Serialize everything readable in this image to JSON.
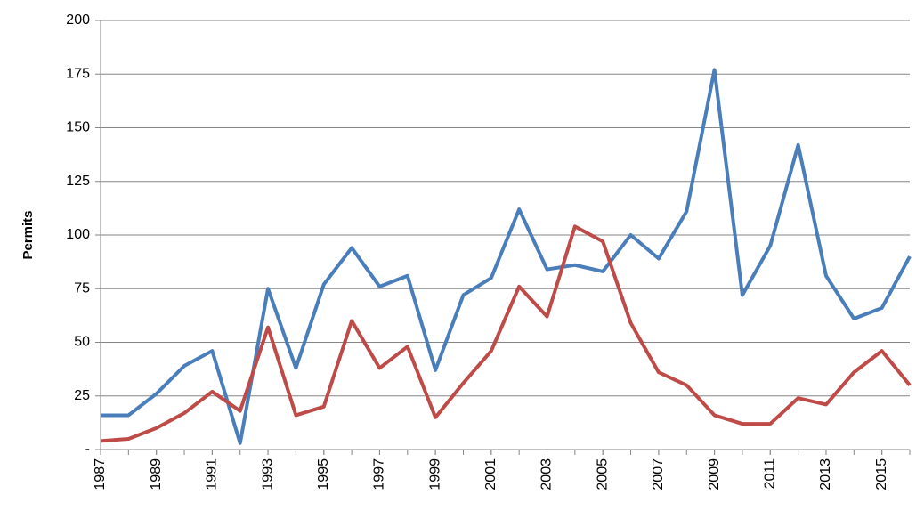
{
  "chart_data": {
    "type": "line",
    "y_label": "Permits",
    "x": [
      1987,
      1988,
      1989,
      1990,
      1991,
      1992,
      1993,
      1994,
      1995,
      1996,
      1997,
      1998,
      1999,
      2000,
      2001,
      2002,
      2003,
      2004,
      2005,
      2006,
      2007,
      2008,
      2009,
      2010,
      2011,
      2012,
      2013,
      2014,
      2015,
      2016
    ],
    "xlim": [
      1987,
      2016
    ],
    "xticks": [
      1987,
      1989,
      1991,
      1993,
      1995,
      1997,
      1999,
      2001,
      2003,
      2005,
      2007,
      2009,
      2011,
      2013,
      2015
    ],
    "ylim": [
      0,
      200
    ],
    "yticks": [
      {
        "value": 0,
        "label": "-"
      },
      25,
      50,
      75,
      100,
      125,
      150,
      175,
      200
    ],
    "grid": true,
    "series": [
      {
        "color": "#4a7ebb",
        "values": [
          16,
          16,
          26,
          39,
          46,
          3,
          75,
          38,
          77,
          94,
          76,
          81,
          37,
          72,
          80,
          112,
          84,
          86,
          83,
          100,
          89,
          111,
          177,
          72,
          95,
          142,
          81,
          61,
          66,
          90
        ]
      },
      {
        "color": "#be4b48",
        "values": [
          4,
          5,
          10,
          17,
          27,
          18,
          57,
          16,
          20,
          60,
          38,
          48,
          15,
          31,
          46,
          76,
          62,
          104,
          97,
          59,
          36,
          30,
          16,
          12,
          12,
          24,
          21,
          36,
          46,
          30
        ]
      }
    ]
  }
}
